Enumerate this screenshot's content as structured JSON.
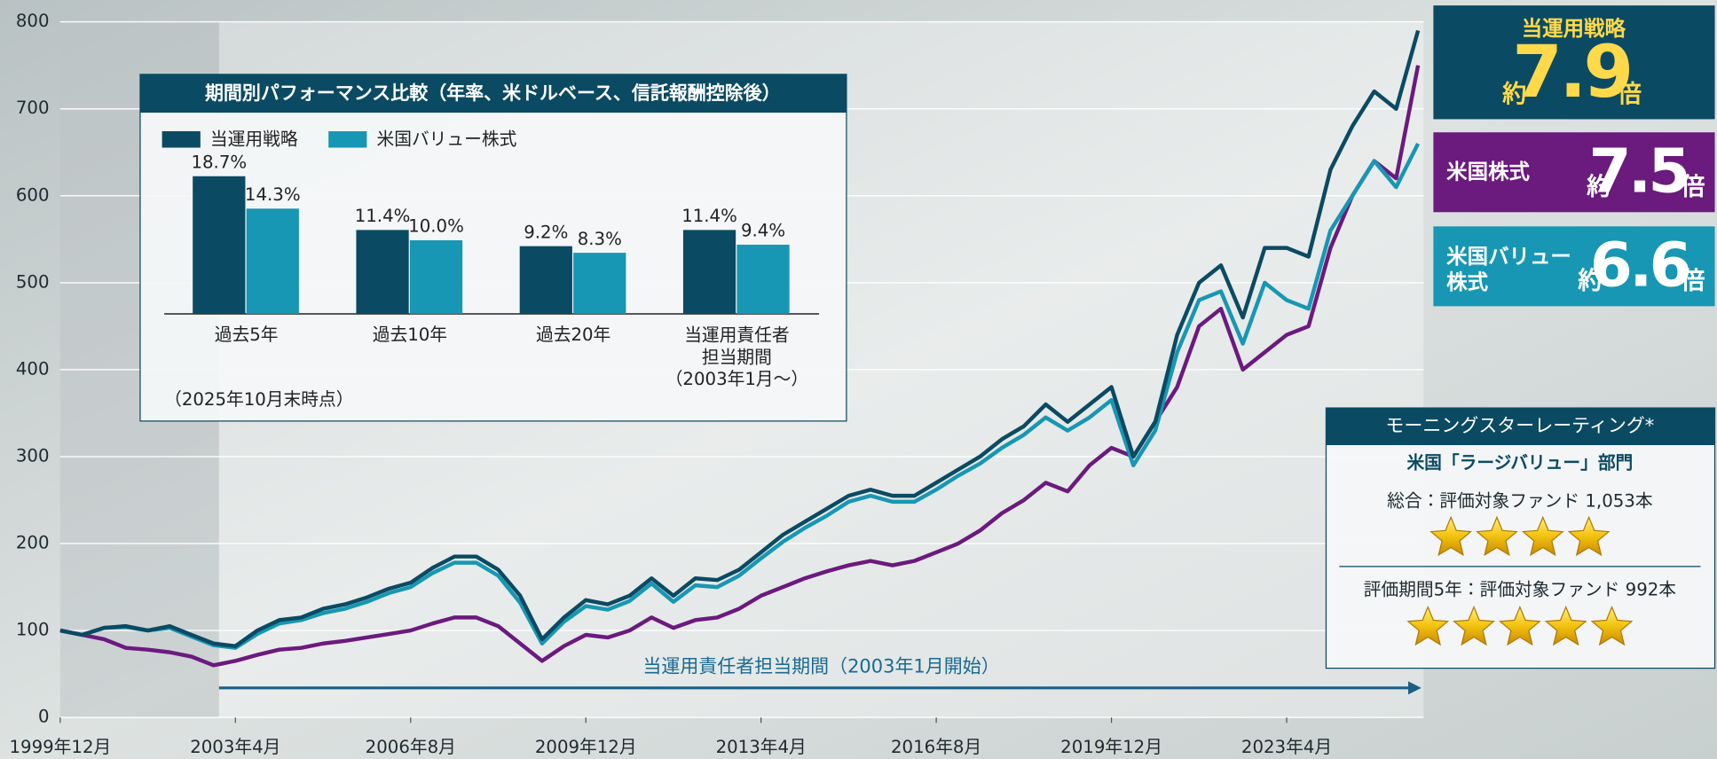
{
  "chart_data": [
    {
      "type": "line",
      "annotation": "当運用責任者担当期間（2003年1月開始）",
      "x": [
        "1999年12月",
        "2000年5月",
        "2000年10月",
        "2001年3月",
        "2001年8月",
        "2002年1月",
        "2002年6月",
        "2002年11月",
        "2003年4月",
        "2003年9月",
        "2004年2月",
        "2004年7月",
        "2004年12月",
        "2005年5月",
        "2005年10月",
        "2006年3月",
        "2006年8月",
        "2007年1月",
        "2007年6月",
        "2007年11月",
        "2008年4月",
        "2008年9月",
        "2009年2月",
        "2009年7月",
        "2009年12月",
        "2010年5月",
        "2010年10月",
        "2011年3月",
        "2011年8月",
        "2012年1月",
        "2012年6月",
        "2012年11月",
        "2013年4月",
        "2013年9月",
        "2014年2月",
        "2014年7月",
        "2014年12月",
        "2015年5月",
        "2015年10月",
        "2016年3月",
        "2016年8月",
        "2017年1月",
        "2017年6月",
        "2017年11月",
        "2018年4月",
        "2018年9月",
        "2019年2月",
        "2019年7月",
        "2019年12月",
        "2020年5月",
        "2020年10月",
        "2021年3月",
        "2021年8月",
        "2022年1月",
        "2022年6月",
        "2022年11月",
        "2023年4月",
        "2023年9月",
        "2024年2月",
        "2024年7月",
        "2024年12月",
        "2025年5月",
        "2025年10月"
      ],
      "xticks": [
        "1999年12月",
        "2003年4月",
        "2006年8月",
        "2009年12月",
        "2013年4月",
        "2016年8月",
        "2019年12月",
        "2023年4月"
      ],
      "ylim": [
        0,
        800
      ],
      "yticks": [
        0,
        100,
        200,
        300,
        400,
        500,
        600,
        700,
        800
      ],
      "grid": true,
      "series": [
        {
          "name": "当運用戦略",
          "color": "#0b4a63",
          "values": [
            100,
            95,
            103,
            105,
            100,
            105,
            95,
            85,
            82,
            100,
            112,
            115,
            125,
            130,
            138,
            148,
            155,
            172,
            185,
            185,
            170,
            140,
            90,
            115,
            135,
            130,
            140,
            160,
            140,
            160,
            158,
            170,
            190,
            210,
            225,
            240,
            255,
            262,
            255,
            255,
            270,
            285,
            300,
            320,
            335,
            360,
            340,
            360,
            380,
            300,
            340,
            440,
            500,
            520,
            460,
            540,
            540,
            530,
            630,
            680,
            720,
            700,
            790
          ]
        },
        {
          "name": "米国株式",
          "color": "#6b1a7e",
          "values": [
            100,
            95,
            90,
            80,
            78,
            75,
            70,
            60,
            65,
            72,
            78,
            80,
            85,
            88,
            92,
            96,
            100,
            108,
            115,
            115,
            105,
            85,
            65,
            82,
            95,
            92,
            100,
            115,
            103,
            112,
            115,
            125,
            140,
            150,
            160,
            168,
            175,
            180,
            175,
            180,
            190,
            200,
            215,
            235,
            250,
            270,
            260,
            290,
            310,
            300,
            340,
            380,
            450,
            470,
            400,
            420,
            440,
            450,
            540,
            600,
            640,
            620,
            750
          ]
        },
        {
          "name": "米国バリュー株式",
          "color": "#1797b3",
          "values": [
            100,
            95,
            103,
            104,
            100,
            103,
            93,
            83,
            80,
            96,
            108,
            112,
            120,
            125,
            133,
            143,
            150,
            166,
            178,
            178,
            163,
            132,
            85,
            110,
            128,
            124,
            134,
            154,
            133,
            152,
            150,
            163,
            183,
            202,
            218,
            232,
            248,
            255,
            248,
            248,
            262,
            278,
            292,
            310,
            325,
            345,
            330,
            345,
            365,
            290,
            330,
            420,
            480,
            490,
            430,
            500,
            480,
            470,
            560,
            600,
            640,
            610,
            660
          ]
        }
      ]
    },
    {
      "type": "bar",
      "title": "期間別パフォーマンス比較（年率、米ドルベース、信託報酬控除後）",
      "note": "（2025年10月末時点）",
      "categories": [
        "過去5年",
        "過去10年",
        "過去20年",
        "当運用責任者\n担当期間\n（2003年1月〜）"
      ],
      "series": [
        {
          "name": "当運用戦略",
          "color": "#0b4a63",
          "values": [
            18.7,
            11.4,
            9.2,
            11.4
          ],
          "value_labels": [
            "18.7%",
            "11.4%",
            "9.2%",
            "11.4%"
          ]
        },
        {
          "name": "米国バリュー株式",
          "color": "#1797b3",
          "values": [
            14.3,
            10.0,
            8.3,
            9.4
          ],
          "value_labels": [
            "14.3%",
            "10.0%",
            "8.3%",
            "9.4%"
          ]
        }
      ]
    }
  ],
  "callouts": [
    {
      "name": "当運用戦略",
      "prefix": "約",
      "multiple": 7.9,
      "suffix": "倍",
      "color": "#0b4a63"
    },
    {
      "name": "米国株式",
      "prefix": "約",
      "multiple": 7.5,
      "suffix": "倍",
      "color": "#6b1a7e"
    },
    {
      "name": "米国バリュー\n株式",
      "prefix": "約",
      "multiple": 6.6,
      "suffix": "倍",
      "color": "#1797b3"
    }
  ],
  "rating": {
    "title": "モーニングスターレーティング*",
    "subtitle": "米国「ラージバリュー」部門",
    "rows": [
      {
        "label": "総合：評価対象ファンド 1,053本",
        "stars": 4
      },
      {
        "label": "評価期間5年：評価対象ファンド 992本",
        "stars": 5
      }
    ]
  }
}
